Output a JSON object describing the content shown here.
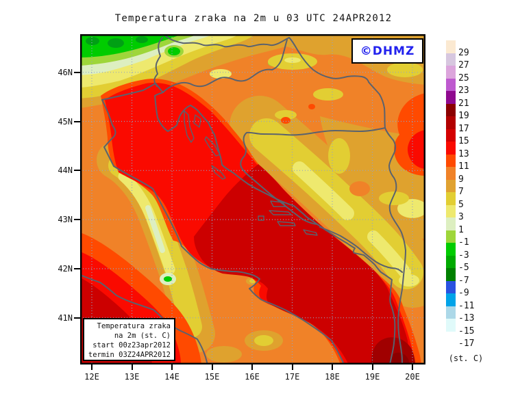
{
  "title": "Temperatura zraka na 2m u 03 UTC 24APR2012",
  "watermark": {
    "text": "©DHMZ",
    "color": "#2222EE"
  },
  "info_box": {
    "lines": [
      "Temperatura zraka",
      "na 2m (st. C)",
      "start 00z23apr2012",
      "termin 03Z24APR2012"
    ]
  },
  "axes": {
    "lat": [
      "46N",
      "45N",
      "44N",
      "43N",
      "42N",
      "41N"
    ],
    "lon": [
      "12E",
      "13E",
      "14E",
      "15E",
      "16E",
      "17E",
      "18E",
      "19E",
      "20E"
    ]
  },
  "colorbar": {
    "unit": "(st. C)",
    "entries": [
      {
        "value": "29",
        "color": "#FBE9D1"
      },
      {
        "value": "27",
        "color": "#D7C7DF"
      },
      {
        "value": "25",
        "color": "#DCA5DC"
      },
      {
        "value": "23",
        "color": "#BE5ACF"
      },
      {
        "value": "21",
        "color": "#8F0A8F"
      },
      {
        "value": "19",
        "color": "#8B0000"
      },
      {
        "value": "17",
        "color": "#B20000"
      },
      {
        "value": "15",
        "color": "#D40000"
      },
      {
        "value": "13",
        "color": "#FA0A00"
      },
      {
        "value": "11",
        "color": "#FF4A00"
      },
      {
        "value": "9",
        "color": "#F08228"
      },
      {
        "value": "7",
        "color": "#E0A231"
      },
      {
        "value": "5",
        "color": "#E2CE33"
      },
      {
        "value": "3",
        "color": "#EEE96E"
      },
      {
        "value": "1",
        "color": "#DDEFC1"
      },
      {
        "value": "-1",
        "color": "#9ED63A"
      },
      {
        "value": "-3",
        "color": "#00CC00"
      },
      {
        "value": "-5",
        "color": "#00AA00"
      },
      {
        "value": "-7",
        "color": "#008000"
      },
      {
        "value": "-9",
        "color": "#2A52E0"
      },
      {
        "value": "-11",
        "color": "#00A3E8"
      },
      {
        "value": "-13",
        "color": "#ACD8E8"
      },
      {
        "value": "-15",
        "color": "#E0FAFA"
      },
      {
        "value": "-17",
        "color": "#FFFFFF"
      }
    ]
  },
  "palette": {
    "orange": "#F08228",
    "gold": "#DFA22E",
    "yellow": "#E2CE33",
    "pale_yellow": "#EEE96E",
    "cream": "#DDEFC1",
    "yellow_green": "#9ED63A",
    "green": "#00CC00",
    "dark_green": "#00A014",
    "orange_red": "#FF4A00",
    "red": "#FA0A00",
    "red_mid": "#CC0000",
    "red_dark": "#A00000",
    "maroon": "#8B0000",
    "coast": "#5A626E",
    "grid": "#92A4C4",
    "frame": "#000000"
  }
}
